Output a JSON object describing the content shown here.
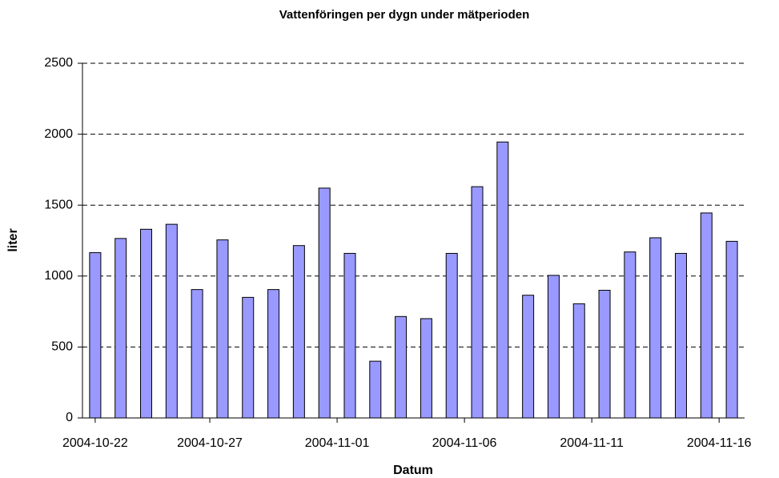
{
  "chart_data": {
    "type": "bar",
    "title": "Vattenföringen per dygn under mätperioden",
    "x_label": "Datum",
    "y_label": "liter",
    "categories": [
      "2004-10-22",
      null,
      null,
      null,
      null,
      "2004-10-27",
      null,
      null,
      null,
      null,
      "2004-11-01",
      null,
      null,
      null,
      null,
      "2004-11-06",
      null,
      null,
      null,
      null,
      "2004-11-11",
      null,
      null,
      null,
      null,
      "2004-11-16"
    ],
    "values": [
      1165,
      1265,
      1330,
      1365,
      905,
      1255,
      850,
      905,
      1215,
      1620,
      1160,
      400,
      715,
      700,
      1160,
      1630,
      1945,
      865,
      1005,
      805,
      900,
      1170,
      1270,
      1160,
      1445,
      1245
    ],
    "color": "#9999ff",
    "ylim": [
      0,
      2500
    ],
    "yticks": [
      0,
      500,
      1000,
      1500,
      2000,
      2500
    ],
    "grid": true
  }
}
